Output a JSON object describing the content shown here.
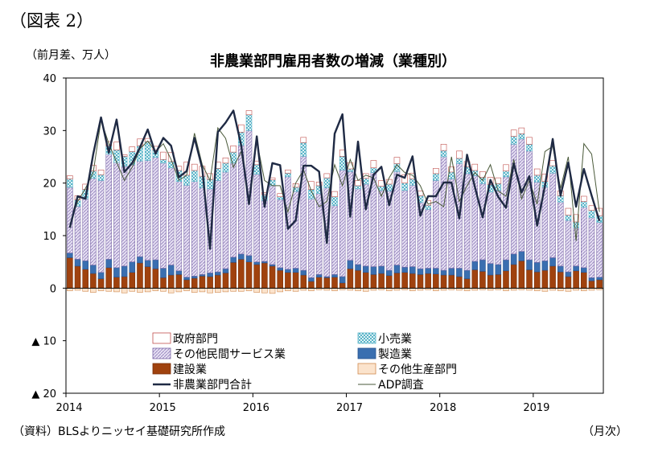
{
  "figure_label": "（図表 2）",
  "unit_label": "（前月差、万人）",
  "source_note": "（資料）BLSよりニッセイ基礎研究所作成",
  "x_unit": "（月次）",
  "colors": {
    "government": "#c0504d",
    "retail": "#5ab4c8",
    "other_private_services": "#a898c8",
    "manufacturing": "#3a6fb0",
    "construction": "#a0420e",
    "other_goods": "#f0c49c",
    "total_line": "#1f2a44",
    "adp_line": "#4a5a3a"
  },
  "chart_data": {
    "type": "bar",
    "stacked": true,
    "title": "非農業部門雇用者数の増減（業種別）",
    "ylabel": "（前月差、万人）",
    "xlabel": "",
    "ylim": [
      -20,
      40
    ],
    "yticks": [
      {
        "value": 40,
        "label": "40"
      },
      {
        "value": 30,
        "label": "30"
      },
      {
        "value": 20,
        "label": "20"
      },
      {
        "value": 10,
        "label": "10"
      },
      {
        "value": 0,
        "label": "0"
      },
      {
        "value": -10,
        "label": "▲ 10"
      },
      {
        "value": -20,
        "label": "▲ 20"
      }
    ],
    "xticks": [
      {
        "index": 0,
        "label": "2014"
      },
      {
        "index": 12,
        "label": "2015"
      },
      {
        "index": 24,
        "label": "2016"
      },
      {
        "index": 36,
        "label": "2017"
      },
      {
        "index": 48,
        "label": "2018"
      },
      {
        "index": 60,
        "label": "2019"
      }
    ],
    "grid": false,
    "legend_placement": "bottom-inside",
    "months_count": 69,
    "series": [
      {
        "key": "construction",
        "name": "建設業",
        "values": [
          5.8,
          4.2,
          3.6,
          2.8,
          1.8,
          3.9,
          2.1,
          2.2,
          3.0,
          4.8,
          4.1,
          3.7,
          2.0,
          2.5,
          2.6,
          1.6,
          1.9,
          2.3,
          2.2,
          2.5,
          2.9,
          4.9,
          5.5,
          5.0,
          4.5,
          4.8,
          4.2,
          3.4,
          3.0,
          3.0,
          2.5,
          1.3,
          2.1,
          2.0,
          2.1,
          1.0,
          3.7,
          3.4,
          3.0,
          2.6,
          2.8,
          2.4,
          2.9,
          3.0,
          2.8,
          2.6,
          2.8,
          2.7,
          2.5,
          2.5,
          2.2,
          1.8,
          3.5,
          3.2,
          2.5,
          2.6,
          3.3,
          4.5,
          5.2,
          3.5,
          3.1,
          3.4,
          4.2,
          3.1,
          2.2,
          3.3,
          3.0,
          1.4,
          1.6
        ]
      },
      {
        "key": "manufacturing",
        "name": "製造業",
        "values": [
          0.9,
          1.3,
          1.6,
          1.6,
          1.2,
          1.6,
          1.8,
          2.0,
          2.0,
          1.2,
          1.2,
          1.7,
          1.8,
          1.9,
          0.7,
          0.5,
          0.4,
          0.3,
          0.7,
          0.6,
          0.8,
          1.0,
          1.0,
          1.2,
          0.5,
          0.3,
          0.3,
          0.5,
          0.6,
          0.8,
          0.9,
          0.7,
          0.5,
          0.2,
          0.5,
          1.2,
          1.6,
          1.1,
          1.2,
          1.5,
          1.4,
          1.0,
          1.5,
          1.0,
          1.3,
          1.1,
          1.0,
          1.1,
          0.9,
          1.3,
          1.6,
          1.6,
          1.6,
          2.2,
          2.2,
          1.9,
          2.1,
          2.0,
          1.8,
          1.9,
          1.8,
          1.8,
          1.6,
          1.1,
          0.9,
          0.9,
          0.9,
          0.6,
          0.5
        ]
      },
      {
        "key": "other_private_services",
        "name": "その他民間サービス業",
        "values": [
          12.5,
          10.1,
          11.8,
          16.5,
          17.5,
          20.0,
          20.0,
          19.0,
          18.5,
          18.2,
          19.0,
          19.5,
          20.0,
          18.5,
          17.0,
          17.5,
          18.0,
          16.5,
          16.0,
          17.4,
          18.4,
          17.9,
          20.7,
          23.8,
          16.7,
          11.6,
          15.0,
          13.0,
          17.6,
          14.6,
          21.7,
          15.0,
          15.4,
          16.9,
          13.1,
          20.3,
          16.9,
          14.4,
          15.6,
          17.9,
          14.4,
          15.1,
          17.8,
          14.6,
          15.5,
          12.6,
          11.2,
          16.7,
          21.6,
          17.0,
          19.9,
          18.4,
          16.3,
          14.5,
          13.6,
          14.1,
          15.8,
          20.9,
          21.4,
          20.7,
          15.3,
          14.0,
          16.1,
          12.2,
          9.8,
          7.3,
          11.5,
          11.4,
          10.4
        ]
      },
      {
        "key": "retail",
        "name": "小売業",
        "values": [
          1.6,
          1.2,
          1.8,
          1.4,
          1.1,
          1.6,
          2.4,
          1.9,
          2.5,
          2.9,
          3.6,
          1.4,
          0.7,
          1.2,
          2.1,
          1.9,
          2.1,
          2.2,
          1.8,
          2.3,
          1.7,
          2.1,
          2.5,
          3.0,
          1.8,
          1.1,
          1.1,
          0.5,
          0.7,
          0.8,
          2.6,
          1.8,
          1.5,
          1.9,
          1.7,
          2.6,
          0.5,
          0.6,
          1.1,
          0.9,
          0.8,
          1.3,
          1.5,
          1.4,
          1.2,
          1.3,
          0.8,
          1.3,
          1.2,
          1.3,
          1.0,
          1.3,
          1.0,
          1.2,
          1.4,
          1.3,
          1.1,
          1.5,
          1.0,
          1.3,
          1.3,
          1.1,
          1.4,
          1.2,
          1.0,
          1.1,
          1.1,
          1.4,
          1.3
        ]
      },
      {
        "key": "government",
        "name": "政府部門",
        "values": [
          0.6,
          0.8,
          1.0,
          1.1,
          0.9,
          0.8,
          1.5,
          0.3,
          0.9,
          1.3,
          0.6,
          0.7,
          1.4,
          1.7,
          0.8,
          2.5,
          1.2,
          1.9,
          1.1,
          1.2,
          1.0,
          1.2,
          1.4,
          0.8,
          0.7,
          0.4,
          0.4,
          0.6,
          0.6,
          0.7,
          1.0,
          1.5,
          0.7,
          0.8,
          1.0,
          1.2,
          1.2,
          1.0,
          0.9,
          1.4,
          1.1,
          0.9,
          1.2,
          1.6,
          1.1,
          0.9,
          0.9,
          1.0,
          1.2,
          1.0,
          1.4,
          1.0,
          1.2,
          1.1,
          1.4,
          1.1,
          1.2,
          1.2,
          1.1,
          1.3,
          1.2,
          1.4,
          1.0,
          0.9,
          1.3,
          1.4,
          1.0,
          0.9,
          1.4
        ]
      },
      {
        "key": "other_goods",
        "name": "その他生産部門",
        "values": [
          -0.5,
          -0.4,
          -0.6,
          -0.8,
          -0.5,
          -0.6,
          -0.7,
          -0.9,
          -0.6,
          -0.8,
          -0.7,
          -0.5,
          -0.6,
          -0.9,
          -0.7,
          -0.5,
          -0.8,
          -0.7,
          -0.9,
          -0.8,
          -0.7,
          -0.6,
          -0.6,
          -0.5,
          -0.8,
          -0.9,
          -1.0,
          -0.7,
          -0.5,
          -0.6,
          -0.4,
          -0.5,
          -0.3,
          -0.4,
          -0.5,
          -0.3,
          -0.4,
          -0.5,
          -0.6,
          -0.4,
          -0.3,
          -0.5,
          -0.4,
          -0.3,
          -0.5,
          -0.4,
          -0.3,
          -0.5,
          -0.4,
          -0.3,
          -0.4,
          -0.5,
          -0.4,
          -0.3,
          -0.4,
          -0.3,
          -0.5,
          -0.4,
          -0.3,
          -0.4,
          -0.5,
          -0.6,
          -0.4,
          -0.5,
          -0.6,
          -0.4,
          -0.5,
          -0.4,
          -0.3
        ]
      },
      {
        "key": "total",
        "name": "非農業部門合計",
        "type": "line",
        "values": [
          11.5,
          17.5,
          17.0,
          25.5,
          32.5,
          25.8,
          32.1,
          22.1,
          23.8,
          26.8,
          30.2,
          25.6,
          28.6,
          27.1,
          21.1,
          22.3,
          28.6,
          22.8,
          7.5,
          29.7,
          31.5,
          33.8,
          27.2,
          16.0,
          28.9,
          15.5,
          23.8,
          23.4,
          11.3,
          12.9,
          23.3,
          23.3,
          22.2,
          8.6,
          29.4,
          33.1,
          13.6,
          27.9,
          15.0,
          21.6,
          23.1,
          15.8,
          21.6,
          21.0,
          25.1,
          13.8,
          17.5,
          17.5,
          20.1,
          20.1,
          13.3,
          25.4,
          19.3,
          13.5,
          20.6,
          17.4,
          15.3,
          23.7,
          18.2,
          21.3,
          11.9,
          19.5,
          28.4,
          17.6,
          23.9,
          15.5,
          22.7,
          17.6,
          12.8
        ]
      },
      {
        "key": "adp",
        "name": "ADP調査",
        "type": "line",
        "values": [
          12.0,
          16.5,
          19.0,
          22.0,
          32.0,
          27.5,
          24.0,
          20.5,
          23.0,
          26.5,
          28.0,
          26.0,
          27.5,
          24.5,
          20.5,
          21.5,
          29.5,
          23.5,
          20.5,
          30.5,
          28.5,
          23.0,
          26.0,
          16.5,
          28.0,
          20.5,
          19.5,
          19.5,
          14.5,
          20.0,
          22.5,
          18.5,
          15.5,
          16.5,
          23.5,
          19.5,
          24.5,
          20.5,
          21.5,
          21.0,
          17.5,
          21.0,
          23.5,
          22.0,
          21.5,
          19.5,
          16.0,
          16.5,
          15.5,
          25.0,
          16.5,
          19.5,
          22.0,
          20.5,
          23.5,
          18.5,
          17.5,
          24.5,
          17.0,
          20.5,
          16.0,
          26.0,
          27.0,
          19.0,
          25.0,
          9.0,
          27.5,
          25.5,
          14.5
        ]
      }
    ]
  }
}
